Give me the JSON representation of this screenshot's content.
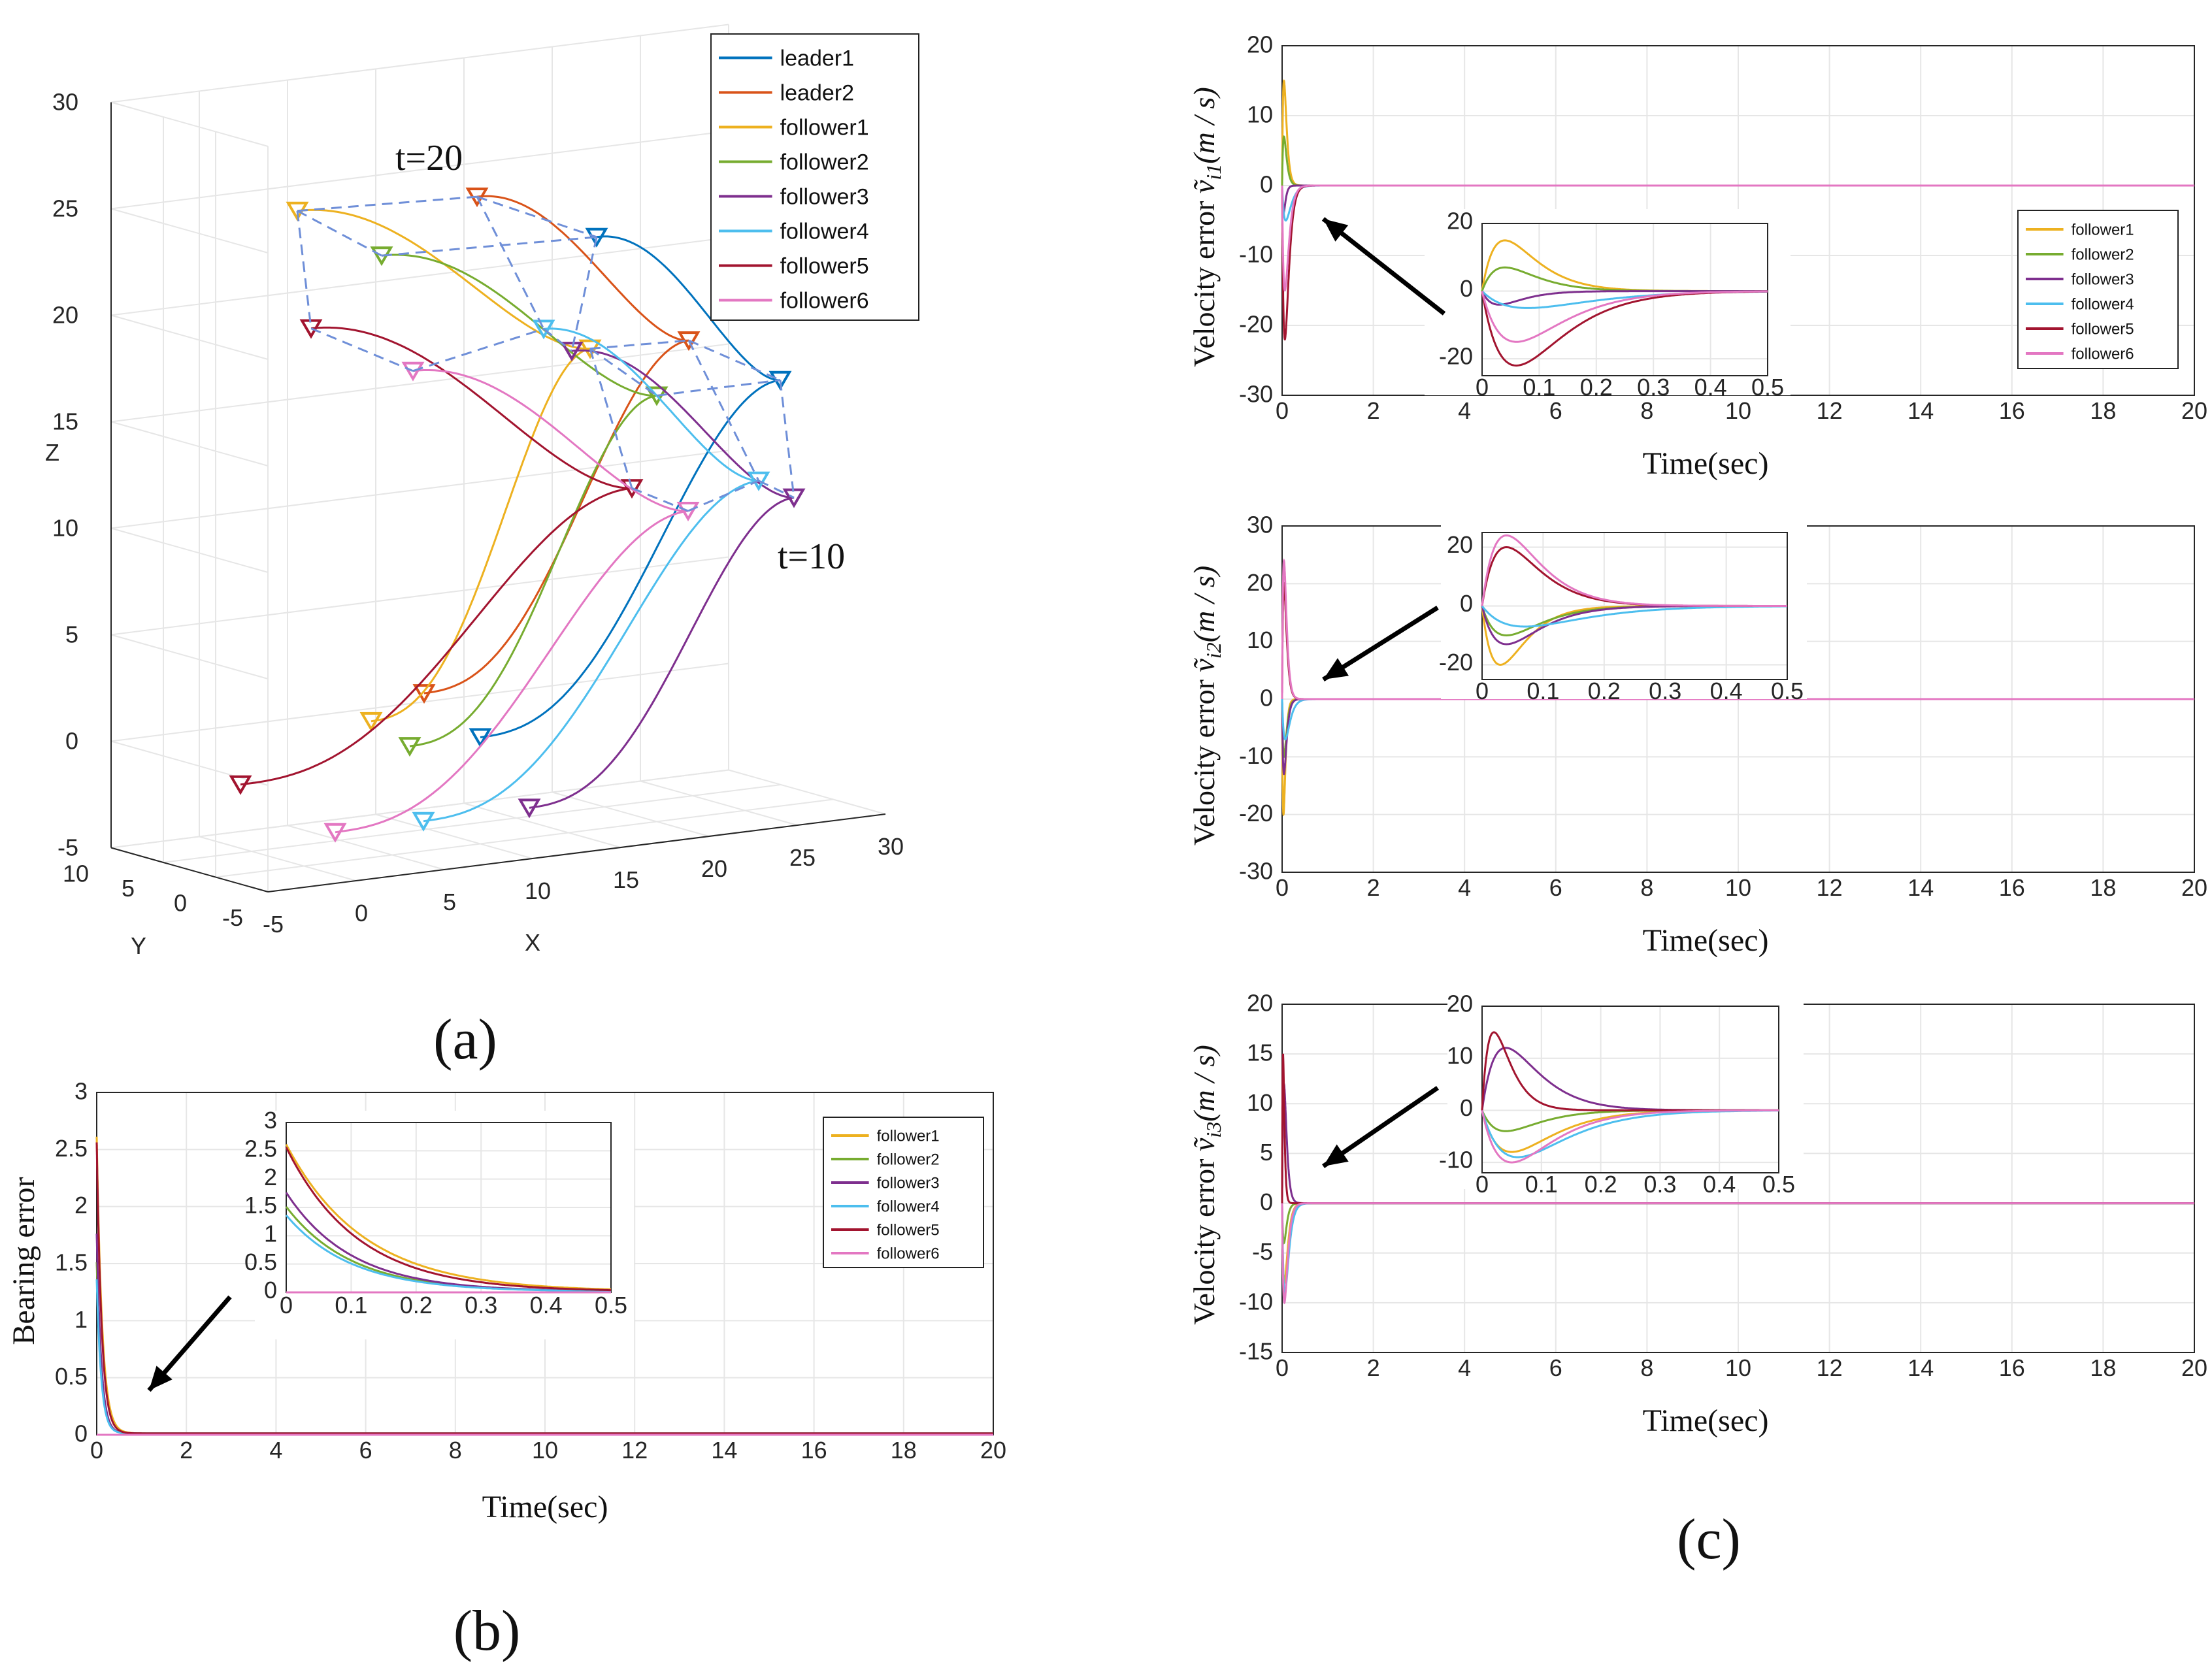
{
  "figure": {
    "panel_a_label": "(a)",
    "panel_b_label": "(b)",
    "panel_c_label": "(c)"
  },
  "colors": {
    "leader1": "#0072BD",
    "leader2": "#D95319",
    "follower1": "#EDB120",
    "follower2": "#77AC30",
    "follower3": "#7E2F8E",
    "follower4": "#4DBEEE",
    "follower5": "#A2142F",
    "follower6": "#E377C2",
    "formation_lines": "#6F8FD8",
    "grid": "#E6E6E6",
    "axis": "#262626"
  },
  "chart_data": [
    {
      "id": "a",
      "type": "line",
      "subtype": "3d-trajectory",
      "xlabel": "X",
      "ylabel": "Y",
      "zlabel": "Z",
      "xlim": [
        -5,
        30
      ],
      "ylim": [
        -5,
        10
      ],
      "zlim": [
        -5,
        30
      ],
      "x_ticks": [
        "-5",
        "0",
        "5",
        "10",
        "15",
        "20",
        "25",
        "30"
      ],
      "y_ticks": [
        "10",
        "5",
        "0",
        "-5"
      ],
      "z_ticks": [
        "30",
        "25",
        "20",
        "15",
        "10",
        "5",
        "0",
        "-5"
      ],
      "legend": [
        "leader1",
        "leader2",
        "follower1",
        "follower2",
        "follower3",
        "follower4",
        "follower5",
        "follower6"
      ],
      "legend_position": "top-right",
      "annotations": [
        "t=20",
        "t=10"
      ]
    },
    {
      "id": "b",
      "type": "line",
      "xlabel": "Time(sec)",
      "ylabel": "Bearing error",
      "xlim": [
        0,
        20
      ],
      "ylim": [
        0,
        3
      ],
      "x_ticks": [
        "0",
        "2",
        "4",
        "6",
        "8",
        "10",
        "12",
        "14",
        "16",
        "18",
        "20"
      ],
      "y_ticks": [
        "0",
        "0.5",
        "1",
        "1.5",
        "2",
        "2.5",
        "3"
      ],
      "legend": [
        "follower1",
        "follower2",
        "follower3",
        "follower4",
        "follower5",
        "follower6"
      ],
      "legend_position": "right",
      "series": [
        {
          "name": "follower1",
          "initial": 2.6,
          "decay": 0.12
        },
        {
          "name": "follower2",
          "initial": 1.5,
          "decay": 0.1
        },
        {
          "name": "follower3",
          "initial": 1.75,
          "decay": 0.1
        },
        {
          "name": "follower4",
          "initial": 1.35,
          "decay": 0.1
        },
        {
          "name": "follower5",
          "initial": 2.55,
          "decay": 0.11
        },
        {
          "name": "follower6",
          "initial": 0.0,
          "decay": 0.1
        }
      ],
      "inset": {
        "xlim": [
          0,
          0.5
        ],
        "ylim": [
          0,
          3
        ],
        "x_ticks": [
          "0",
          "0.1",
          "0.2",
          "0.3",
          "0.4",
          "0.5"
        ],
        "y_ticks": [
          "0",
          "0.5",
          "1",
          "1.5",
          "2",
          "2.5",
          "3"
        ]
      }
    },
    {
      "id": "c1",
      "type": "line",
      "xlabel": "Time(sec)",
      "ylabel": "Velocity error",
      "ylabel_math": "ṽ",
      "ylabel_sub": "i1",
      "ylabel_unit": "(m / s)",
      "xlim": [
        0,
        20
      ],
      "ylim": [
        -30,
        20
      ],
      "x_ticks": [
        "0",
        "2",
        "4",
        "6",
        "8",
        "10",
        "12",
        "14",
        "16",
        "18",
        "20"
      ],
      "y_ticks": [
        "-30",
        "-20",
        "-10",
        "0",
        "10",
        "20"
      ],
      "legend": [
        "follower1",
        "follower2",
        "follower3",
        "follower4",
        "follower5",
        "follower6"
      ],
      "legend_position": "right",
      "series": [
        {
          "name": "follower1",
          "a": 15,
          "p": 0.04
        },
        {
          "name": "follower2",
          "a": 7,
          "p": 0.04
        },
        {
          "name": "follower3",
          "a": -4,
          "p": 0.03
        },
        {
          "name": "follower4",
          "a": -5,
          "p": 0.08
        },
        {
          "name": "follower5",
          "a": -22,
          "p": 0.06
        },
        {
          "name": "follower6",
          "a": -15,
          "p": 0.06
        }
      ],
      "inset": {
        "xlim": [
          0,
          0.5
        ],
        "ylim": [
          -25,
          20
        ],
        "x_ticks": [
          "0",
          "0.1",
          "0.2",
          "0.3",
          "0.4",
          "0.5"
        ],
        "y_ticks": [
          "-20",
          "0",
          "20"
        ]
      }
    },
    {
      "id": "c2",
      "type": "line",
      "xlabel": "Time(sec)",
      "ylabel": "Velocity error",
      "ylabel_math": "ṽ",
      "ylabel_sub": "i2",
      "ylabel_unit": "(m / s)",
      "xlim": [
        0,
        20
      ],
      "ylim": [
        -30,
        30
      ],
      "x_ticks": [
        "0",
        "2",
        "4",
        "6",
        "8",
        "10",
        "12",
        "14",
        "16",
        "18",
        "20"
      ],
      "y_ticks": [
        "-30",
        "-20",
        "-10",
        "0",
        "10",
        "20",
        "30"
      ],
      "series": [
        {
          "name": "follower1",
          "a": -20,
          "p": 0.03
        },
        {
          "name": "follower2",
          "a": -10,
          "p": 0.04
        },
        {
          "name": "follower3",
          "a": -13,
          "p": 0.04
        },
        {
          "name": "follower4",
          "a": -7,
          "p": 0.07
        },
        {
          "name": "follower5",
          "a": 20,
          "p": 0.04
        },
        {
          "name": "follower6",
          "a": 24,
          "p": 0.04
        }
      ],
      "inset": {
        "xlim": [
          0,
          0.5
        ],
        "ylim": [
          -25,
          25
        ],
        "x_ticks": [
          "0",
          "0.1",
          "0.2",
          "0.3",
          "0.4",
          "0.5"
        ],
        "y_ticks": [
          "-20",
          "0",
          "20"
        ]
      }
    },
    {
      "id": "c3",
      "type": "line",
      "xlabel": "Time(sec)",
      "ylabel": "Velocity error",
      "ylabel_math": "ṽ",
      "ylabel_sub": "i3",
      "ylabel_unit": "(m / s)",
      "xlim": [
        0,
        20
      ],
      "ylim": [
        -15,
        20
      ],
      "x_ticks": [
        "0",
        "2",
        "4",
        "6",
        "8",
        "10",
        "12",
        "14",
        "16",
        "18",
        "20"
      ],
      "y_ticks": [
        "-15",
        "-10",
        "-5",
        "0",
        "5",
        "10",
        "15",
        "20"
      ],
      "series": [
        {
          "name": "follower1",
          "a": -8,
          "p": 0.05
        },
        {
          "name": "follower2",
          "a": -4,
          "p": 0.04
        },
        {
          "name": "follower3",
          "a": 12,
          "p": 0.04
        },
        {
          "name": "follower4",
          "a": -9,
          "p": 0.06
        },
        {
          "name": "follower5",
          "a": 15,
          "p": 0.02
        },
        {
          "name": "follower6",
          "a": -10,
          "p": 0.05
        }
      ],
      "inset": {
        "xlim": [
          0,
          0.5
        ],
        "ylim": [
          -12,
          20
        ],
        "x_ticks": [
          "0",
          "0.1",
          "0.2",
          "0.3",
          "0.4",
          "0.5"
        ],
        "y_ticks": [
          "-10",
          "0",
          "10",
          "20"
        ]
      }
    }
  ]
}
